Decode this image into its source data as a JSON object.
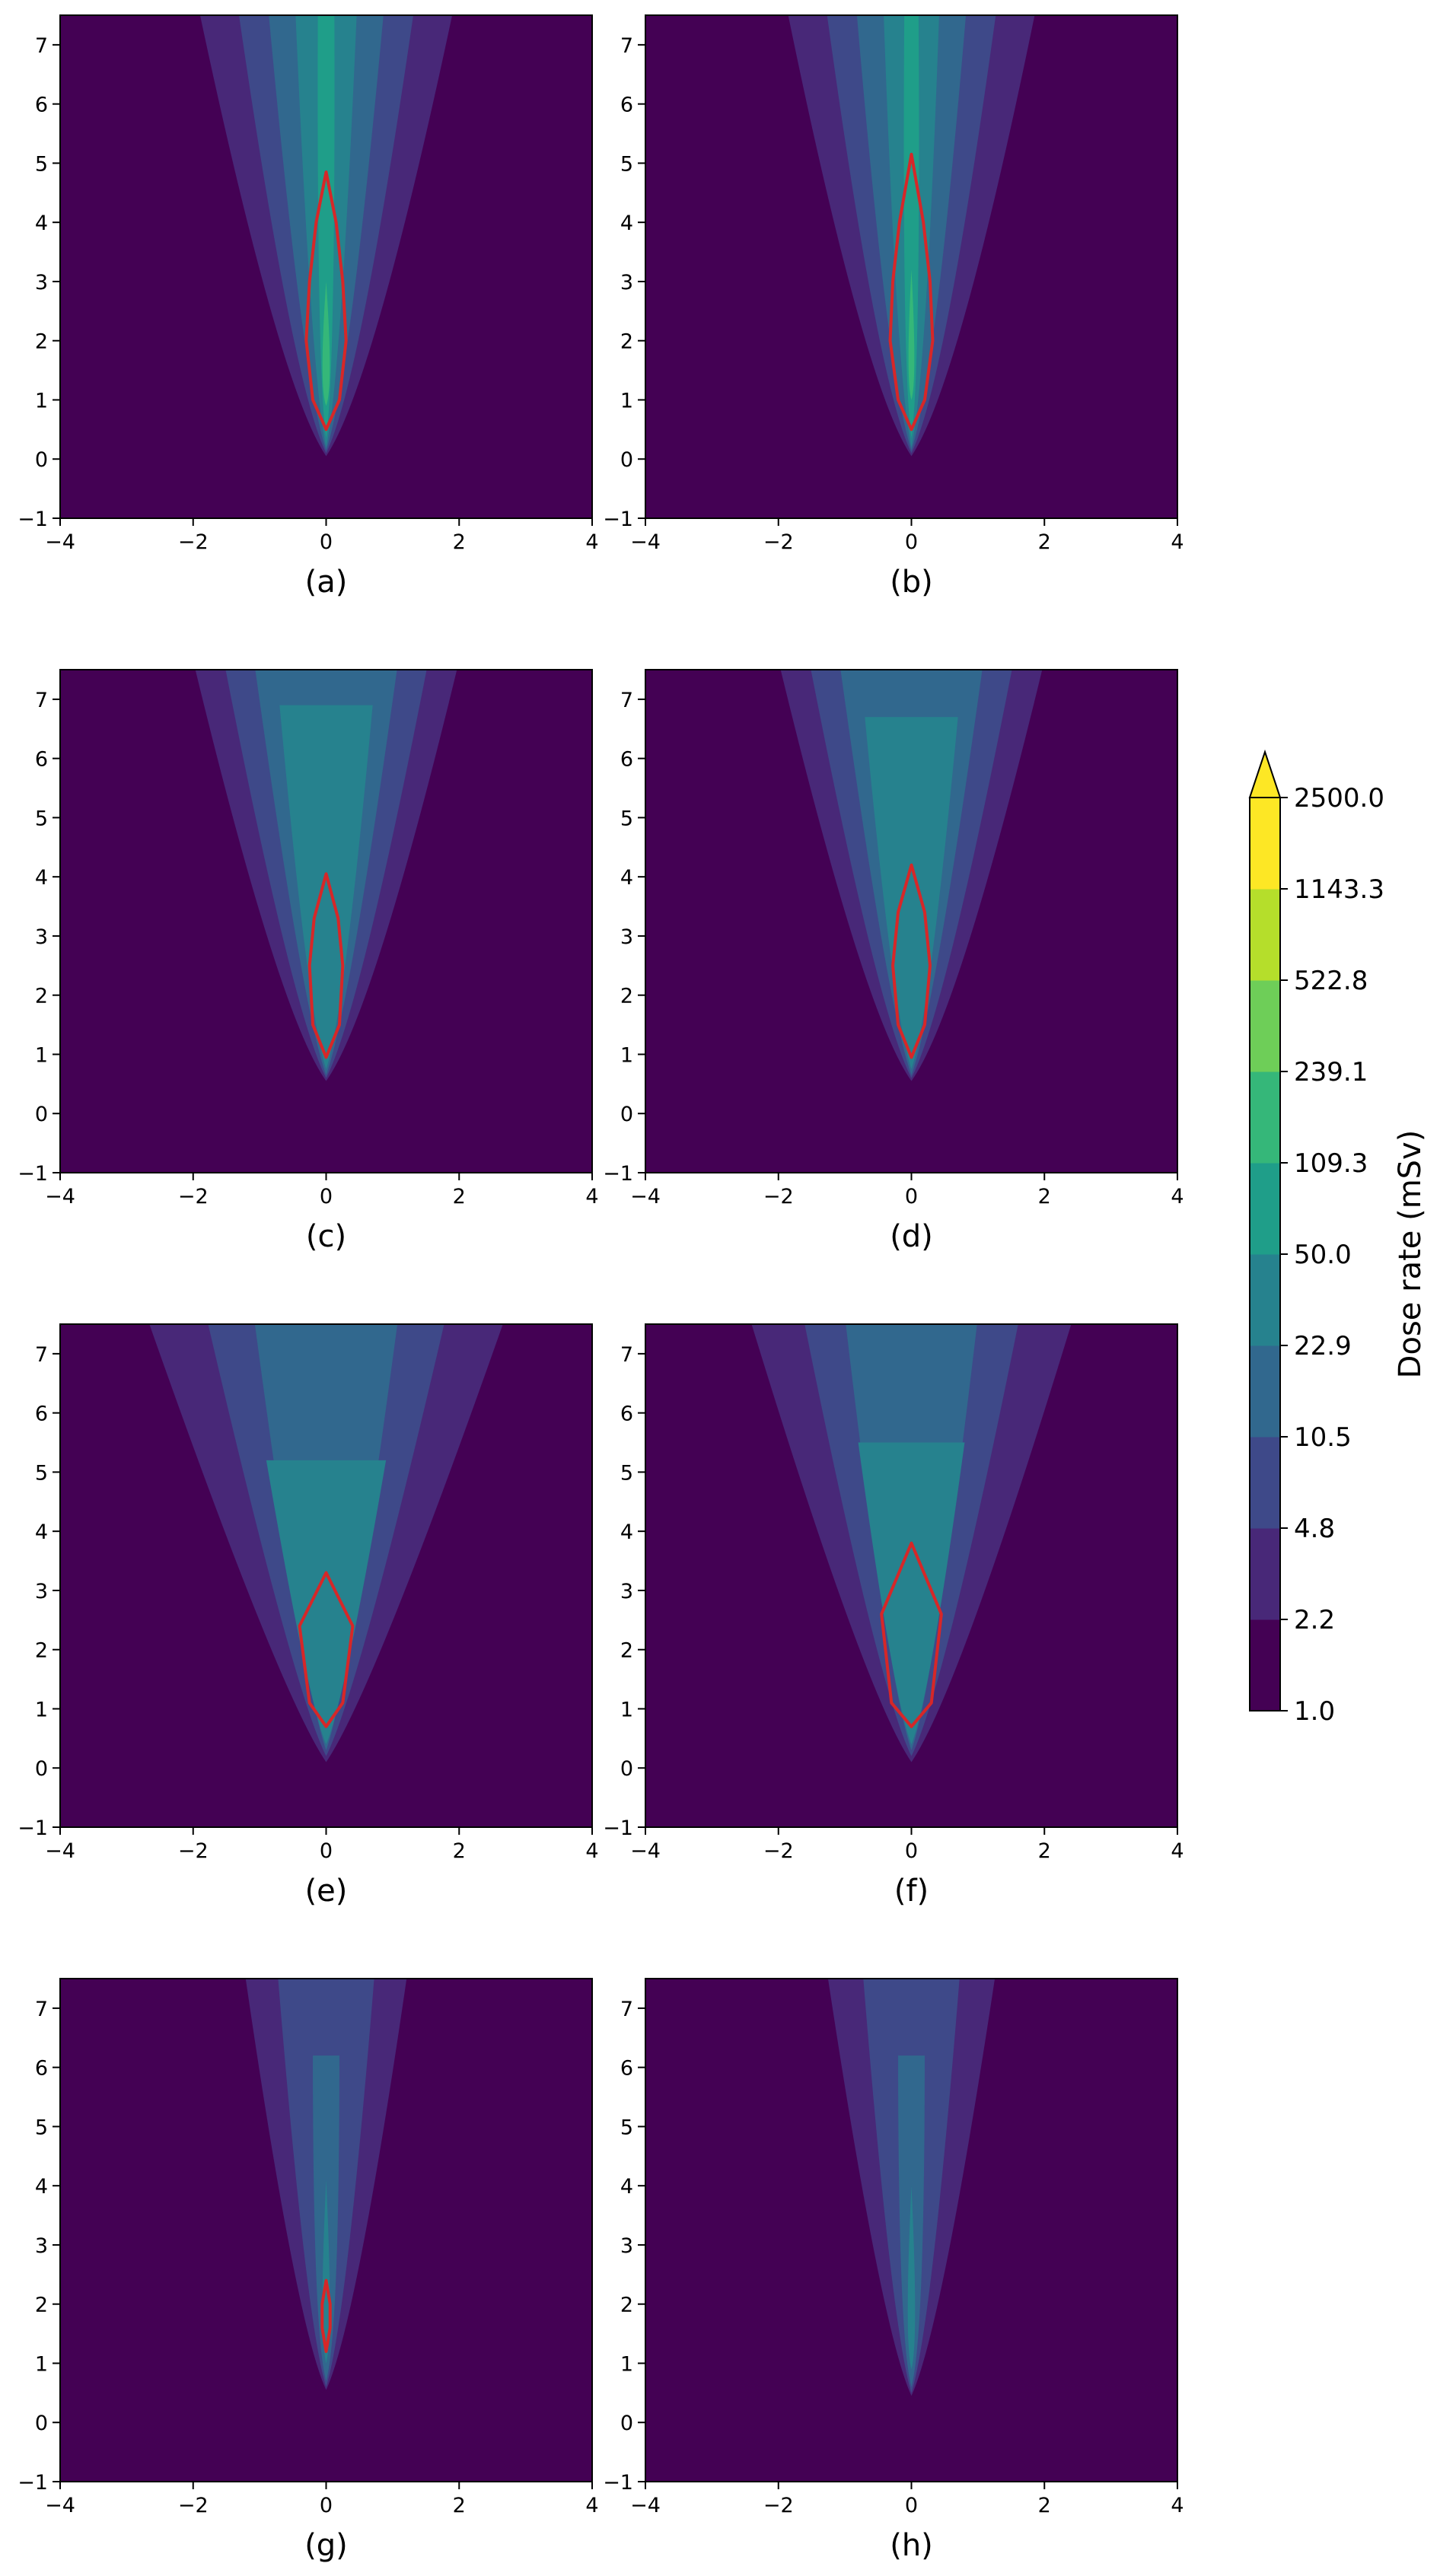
{
  "chart_data": {
    "type": "contour",
    "panels": [
      {
        "label": "(a)",
        "red_contour": [
          [
            0,
            0.5
          ],
          [
            0.2,
            1.0
          ],
          [
            0.3,
            2.0
          ],
          [
            0.25,
            3.0
          ],
          [
            0.15,
            4.0
          ],
          [
            0,
            4.85
          ],
          [
            -0.15,
            4.0
          ],
          [
            -0.25,
            3.0
          ],
          [
            -0.3,
            2.0
          ],
          [
            -0.2,
            1.0
          ]
        ],
        "bands": [
          {
            "lo": 2.2,
            "x0": -0.7,
            "y0": 0.05,
            "x_top": -2.1
          },
          {
            "lo": 4.8,
            "x0": -0.5,
            "y0": 0.1,
            "x_top": -1.45
          },
          {
            "lo": 10.5,
            "x0": -0.35,
            "y0": 0.15,
            "x_top": -0.95
          },
          {
            "lo": 22.9,
            "x0": -0.22,
            "y0": 0.2,
            "x_top": -0.5
          },
          {
            "lo": 50.0,
            "x0": -0.14,
            "y0": 0.35,
            "x_top": -0.12
          },
          {
            "lo": 109.3,
            "x0": -0.1,
            "y0": 0.9,
            "x_top": 0.0,
            "y_top": 3.0
          }
        ]
      },
      {
        "label": "(b)",
        "red_contour": [
          [
            0,
            0.5
          ],
          [
            0.2,
            1.0
          ],
          [
            0.32,
            2.0
          ],
          [
            0.28,
            3.0
          ],
          [
            0.18,
            4.0
          ],
          [
            0,
            5.15
          ],
          [
            -0.18,
            4.0
          ],
          [
            -0.28,
            3.0
          ],
          [
            -0.32,
            2.0
          ],
          [
            -0.2,
            1.0
          ]
        ],
        "bands": [
          {
            "lo": 2.2,
            "x0": -0.7,
            "y0": 0.05,
            "x_top": -2.05
          },
          {
            "lo": 4.8,
            "x0": -0.5,
            "y0": 0.1,
            "x_top": -1.4
          },
          {
            "lo": 10.5,
            "x0": -0.35,
            "y0": 0.15,
            "x_top": -0.9
          },
          {
            "lo": 22.9,
            "x0": -0.22,
            "y0": 0.2,
            "x_top": -0.45
          },
          {
            "lo": 50.0,
            "x0": -0.14,
            "y0": 0.35,
            "x_top": -0.1
          },
          {
            "lo": 109.3,
            "x0": -0.08,
            "y0": 1.0,
            "x_top": 0.0,
            "y_top": 3.2
          }
        ]
      },
      {
        "label": "(c)",
        "red_contour": [
          [
            0,
            0.95
          ],
          [
            0.2,
            1.5
          ],
          [
            0.25,
            2.5
          ],
          [
            0.18,
            3.3
          ],
          [
            0,
            4.05
          ],
          [
            -0.18,
            3.3
          ],
          [
            -0.25,
            2.5
          ],
          [
            -0.2,
            1.5
          ]
        ],
        "bands": [
          {
            "lo": 2.2,
            "x0": -0.7,
            "y0": 0.55,
            "x_top": -2.2
          },
          {
            "lo": 4.8,
            "x0": -0.5,
            "y0": 0.6,
            "x_top": -1.7
          },
          {
            "lo": 10.5,
            "x0": -0.35,
            "y0": 0.65,
            "x_top": -1.2
          },
          {
            "lo": 22.9,
            "x0": -0.25,
            "y0": 0.75,
            "x_top": -0.7,
            "y_top": 6.9
          }
        ]
      },
      {
        "label": "(d)",
        "red_contour": [
          [
            0,
            0.95
          ],
          [
            0.2,
            1.5
          ],
          [
            0.28,
            2.5
          ],
          [
            0.2,
            3.4
          ],
          [
            0,
            4.2
          ],
          [
            -0.2,
            3.4
          ],
          [
            -0.28,
            2.5
          ],
          [
            -0.2,
            1.5
          ]
        ],
        "bands": [
          {
            "lo": 2.2,
            "x0": -0.7,
            "y0": 0.55,
            "x_top": -2.2
          },
          {
            "lo": 4.8,
            "x0": -0.5,
            "y0": 0.6,
            "x_top": -1.7
          },
          {
            "lo": 10.5,
            "x0": -0.35,
            "y0": 0.65,
            "x_top": -1.2
          },
          {
            "lo": 22.9,
            "x0": -0.25,
            "y0": 0.75,
            "x_top": -0.7,
            "y_top": 6.7
          }
        ]
      },
      {
        "label": "(e)",
        "red_contour": [
          [
            0,
            0.7
          ],
          [
            0.25,
            1.1
          ],
          [
            0.4,
            2.4
          ],
          [
            0,
            3.3
          ],
          [
            -0.4,
            2.4
          ],
          [
            -0.25,
            1.1
          ]
        ],
        "bands": [
          {
            "lo": 2.2,
            "x0": -0.7,
            "y0": 0.1,
            "x_top": -3.0
          },
          {
            "lo": 4.8,
            "x0": -0.5,
            "y0": 0.2,
            "x_top": -2.0
          },
          {
            "lo": 10.5,
            "x0": -0.35,
            "y0": 0.3,
            "x_top": -1.2
          },
          {
            "lo": 22.9,
            "x0": -0.25,
            "y0": 0.4,
            "x_top": -0.9,
            "y_top": 5.2
          }
        ]
      },
      {
        "label": "(f)",
        "red_contour": [
          [
            0,
            0.7
          ],
          [
            0.3,
            1.1
          ],
          [
            0.45,
            2.6
          ],
          [
            0,
            3.8
          ],
          [
            -0.45,
            2.6
          ],
          [
            -0.3,
            1.1
          ]
        ],
        "bands": [
          {
            "lo": 2.2,
            "x0": -0.7,
            "y0": 0.1,
            "x_top": -2.7
          },
          {
            "lo": 4.8,
            "x0": -0.5,
            "y0": 0.2,
            "x_top": -1.8
          },
          {
            "lo": 10.5,
            "x0": -0.35,
            "y0": 0.3,
            "x_top": -1.1
          },
          {
            "lo": 22.9,
            "x0": -0.25,
            "y0": 0.4,
            "x_top": -0.8,
            "y_top": 5.5
          }
        ]
      },
      {
        "label": "(g)",
        "red_contour": [
          [
            0,
            1.2
          ],
          [
            0.06,
            1.6
          ],
          [
            0.06,
            2.0
          ],
          [
            0,
            2.4
          ],
          [
            -0.06,
            2.0
          ],
          [
            -0.06,
            1.6
          ]
        ],
        "bands": [
          {
            "lo": 2.2,
            "x0": -0.45,
            "y0": 0.55,
            "x_top": -1.35
          },
          {
            "lo": 4.8,
            "x0": -0.3,
            "y0": 0.6,
            "x_top": -0.8
          },
          {
            "lo": 10.5,
            "x0": -0.18,
            "y0": 0.7,
            "x_top": -0.2,
            "y_top": 6.2
          },
          {
            "lo": 22.9,
            "x0": -0.1,
            "y0": 1.0,
            "x_top": 0.0,
            "y_top": 4.1
          }
        ]
      },
      {
        "label": "(h)",
        "red_contour": [],
        "bands": [
          {
            "lo": 2.2,
            "x0": -0.45,
            "y0": 0.45,
            "x_top": -1.4
          },
          {
            "lo": 4.8,
            "x0": -0.3,
            "y0": 0.5,
            "x_top": -0.8
          },
          {
            "lo": 10.5,
            "x0": -0.18,
            "y0": 0.6,
            "x_top": -0.2,
            "y_top": 6.2
          },
          {
            "lo": 22.9,
            "x0": -0.1,
            "y0": 0.9,
            "x_top": 0.0,
            "y_top": 4.0
          }
        ]
      }
    ],
    "x_range": [
      -4,
      4
    ],
    "y_range": [
      -1,
      7.5
    ],
    "x_ticks": [
      -4,
      -2,
      0,
      2,
      4
    ],
    "y_ticks": [
      -1,
      0,
      1,
      2,
      3,
      4,
      5,
      6,
      7
    ],
    "colorbar": {
      "label": "Dose rate (mSv)",
      "levels": [
        1.0,
        2.2,
        4.8,
        10.5,
        22.9,
        50.0,
        109.3,
        239.1,
        522.8,
        1143.3,
        2500.0
      ],
      "tick_labels": [
        "1.0",
        "2.2",
        "4.8",
        "10.5",
        "22.9",
        "50.0",
        "109.3",
        "239.1",
        "522.8",
        "1143.3",
        "2500.0"
      ],
      "colors": [
        "#440154",
        "#482878",
        "#3e4989",
        "#31688e",
        "#26828e",
        "#1f9e89",
        "#35b779",
        "#6ece58",
        "#b5de2b",
        "#fde725"
      ],
      "extend": "max"
    },
    "contour_color": "#d62728",
    "grid": false
  }
}
